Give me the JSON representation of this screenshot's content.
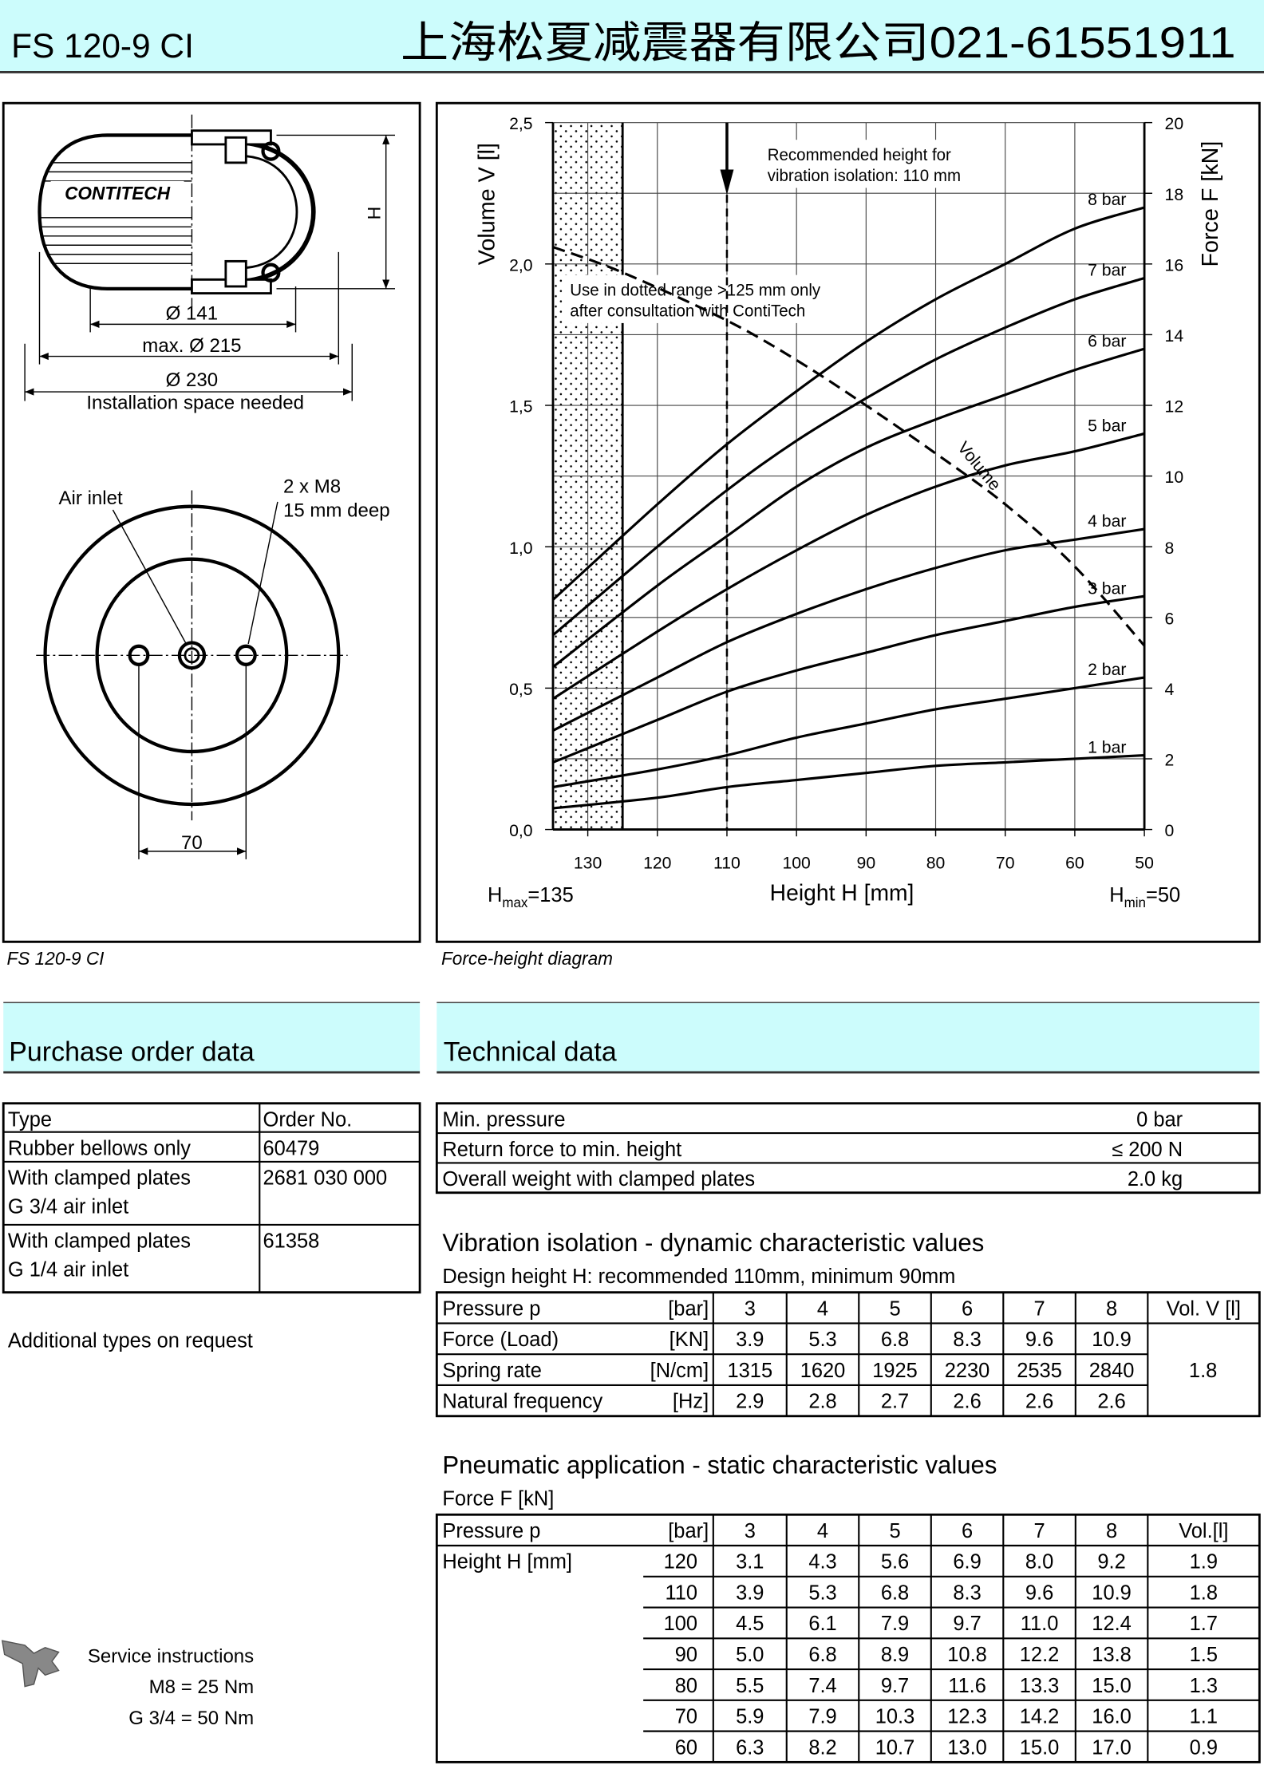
{
  "header": {
    "title": "FS 120-9 CI",
    "company": "上海松夏减震器有限公司021-61551911"
  },
  "drawing": {
    "caption": "FS 120-9 CI",
    "brand": "CONTITECH",
    "height": "H",
    "d_inner": "Ø 141",
    "d_max": "max. Ø 215",
    "d_space": "Ø 230",
    "space_note": "Installation space needed",
    "air_inlet": "Air inlet",
    "thread": "2 x M8",
    "depth": "15 mm deep",
    "spacing": "70"
  },
  "chart_data": {
    "type": "line",
    "caption": "Force-height diagram",
    "x_label": "Height H [mm]",
    "y_label": "Volume V [l]",
    "y2_label": "Force F [kN]",
    "annotations": {
      "recommended": [
        "Recommended height for",
        "vibration isolation: 110 mm"
      ],
      "dotted": [
        "Use in dotted range >125 mm only",
        "after consultation with ContiTech"
      ],
      "h_max": {
        "symbol": "H",
        "sub": "max",
        "text": "=135"
      },
      "h_min": {
        "symbol": "H",
        "sub": "min",
        "text": "=50"
      }
    },
    "xlim": [
      135,
      50
    ],
    "xticks": [
      130,
      120,
      110,
      100,
      90,
      80,
      70,
      60,
      50
    ],
    "ylim": [
      0,
      2.5
    ],
    "yticks": [
      {
        "value": 0,
        "label": "0,0"
      },
      {
        "value": 0.5,
        "label": "0,5"
      },
      {
        "value": 1,
        "label": "1,0"
      },
      {
        "value": 1.5,
        "label": "1,5"
      },
      {
        "value": 2,
        "label": "2,0"
      },
      {
        "value": 2.5,
        "label": "2,5"
      }
    ],
    "y2lim": [
      0,
      20
    ],
    "y2ticks": [
      0,
      2,
      4,
      6,
      8,
      10,
      12,
      14,
      16,
      18,
      20
    ],
    "grid": true,
    "dotted_range": [
      135,
      125
    ],
    "recommended_height": 110,
    "x": [
      135,
      120,
      110,
      100,
      90,
      80,
      70,
      60,
      50
    ],
    "series": [
      {
        "name": "1 bar",
        "axis": "y2",
        "color": "#000000",
        "values": [
          0.6,
          0.9,
          1.2,
          1.4,
          1.6,
          1.8,
          1.9,
          2.0,
          2.1
        ]
      },
      {
        "name": "2 bar",
        "axis": "y2",
        "color": "#000000",
        "values": [
          1.2,
          1.7,
          2.1,
          2.6,
          3.0,
          3.4,
          3.7,
          4.0,
          4.3
        ]
      },
      {
        "name": "3 bar",
        "axis": "y2",
        "color": "#000000",
        "values": [
          1.9,
          3.1,
          3.9,
          4.5,
          5.0,
          5.5,
          5.9,
          6.3,
          6.6
        ]
      },
      {
        "name": "4 bar",
        "axis": "y2",
        "color": "#000000",
        "values": [
          2.8,
          4.3,
          5.3,
          6.1,
          6.8,
          7.4,
          7.9,
          8.2,
          8.5
        ]
      },
      {
        "name": "5 bar",
        "axis": "y2",
        "color": "#000000",
        "values": [
          3.7,
          5.6,
          6.8,
          7.9,
          8.9,
          9.7,
          10.3,
          10.7,
          11.2
        ]
      },
      {
        "name": "6 bar",
        "axis": "y2",
        "color": "#000000",
        "values": [
          4.6,
          6.9,
          8.3,
          9.7,
          10.8,
          11.6,
          12.3,
          13.0,
          13.6
        ]
      },
      {
        "name": "7 bar",
        "axis": "y2",
        "color": "#000000",
        "values": [
          5.5,
          8.0,
          9.6,
          11.0,
          12.2,
          13.3,
          14.2,
          15.0,
          15.6
        ]
      },
      {
        "name": "8 bar",
        "axis": "y2",
        "color": "#000000",
        "values": [
          6.5,
          9.2,
          10.9,
          12.4,
          13.8,
          15.0,
          16.0,
          17.0,
          17.6
        ]
      },
      {
        "name": "Volume",
        "axis": "y",
        "color": "#000000",
        "dashed": true,
        "x": [
          135,
          125,
          110,
          100,
          90,
          80,
          70,
          60,
          50
        ],
        "values": [
          2.06,
          1.97,
          1.8,
          1.66,
          1.5,
          1.33,
          1.15,
          0.93,
          0.65
        ]
      }
    ]
  },
  "purchase": {
    "title": "Purchase order data",
    "header": [
      "Type",
      "Order No."
    ],
    "rows": [
      {
        "type": [
          "Rubber bellows only"
        ],
        "order": "60479"
      },
      {
        "type": [
          "With clamped plates",
          "G 3/4 air inlet"
        ],
        "order": "2681 030 000"
      },
      {
        "type": [
          "With clamped plates",
          "G 1/4 air inlet"
        ],
        "order": "61358"
      }
    ],
    "note": "Additional types on request"
  },
  "technical": {
    "title": "Technical data",
    "rows": [
      [
        "Min. pressure",
        "0 bar"
      ],
      [
        "Return force to min. height",
        "≤ 200 N"
      ],
      [
        "Overall weight with clamped plates",
        "2.0 kg"
      ]
    ]
  },
  "vibration": {
    "title": "Vibration isolation - dynamic characteristic values",
    "subtitle": "Design height H: recommended 110mm, minimum 90mm",
    "header": [
      "Pressure p",
      "[bar]",
      "3",
      "4",
      "5",
      "6",
      "7",
      "8",
      "Vol. V [l]"
    ],
    "rows": [
      {
        "label": "Force (Load)",
        "unit": "[KN]",
        "values": [
          "3.9",
          "5.3",
          "6.8",
          "8.3",
          "9.6",
          "10.9"
        ]
      },
      {
        "label": "Spring rate",
        "unit": "[N/cm]",
        "values": [
          "1315",
          "1620",
          "1925",
          "2230",
          "2535",
          "2840"
        ]
      },
      {
        "label": "Natural frequency",
        "unit": "[Hz]",
        "values": [
          "2.9",
          "2.8",
          "2.7",
          "2.6",
          "2.6",
          "2.6"
        ]
      }
    ],
    "volume": "1.8"
  },
  "pneumatic": {
    "title": "Pneumatic application - static characteristic values",
    "subtitle": "Force F [kN]",
    "header": [
      "Pressure p",
      "[bar]",
      "3",
      "4",
      "5",
      "6",
      "7",
      "8",
      "Vol.[l]"
    ],
    "row_label": "Height H [mm]",
    "rows": [
      [
        "120",
        "3.1",
        "4.3",
        "5.6",
        "6.9",
        "8.0",
        "9.2",
        "1.9"
      ],
      [
        "110",
        "3.9",
        "5.3",
        "6.8",
        "8.3",
        "9.6",
        "10.9",
        "1.8"
      ],
      [
        "100",
        "4.5",
        "6.1",
        "7.9",
        "9.7",
        "11.0",
        "12.4",
        "1.7"
      ],
      [
        "90",
        "5.0",
        "6.8",
        "8.9",
        "10.8",
        "12.2",
        "13.8",
        "1.5"
      ],
      [
        "80",
        "5.5",
        "7.4",
        "9.7",
        "11.6",
        "13.3",
        "15.0",
        "1.3"
      ],
      [
        "70",
        "5.9",
        "7.9",
        "10.3",
        "12.3",
        "14.2",
        "16.0",
        "1.1"
      ],
      [
        "60",
        "6.3",
        "8.2",
        "10.7",
        "13.0",
        "15.0",
        "17.0",
        "0.9"
      ]
    ]
  },
  "service": {
    "title": "Service instructions",
    "lines": [
      "M8 = 25 Nm",
      "G 3/4 = 50 Nm"
    ]
  }
}
